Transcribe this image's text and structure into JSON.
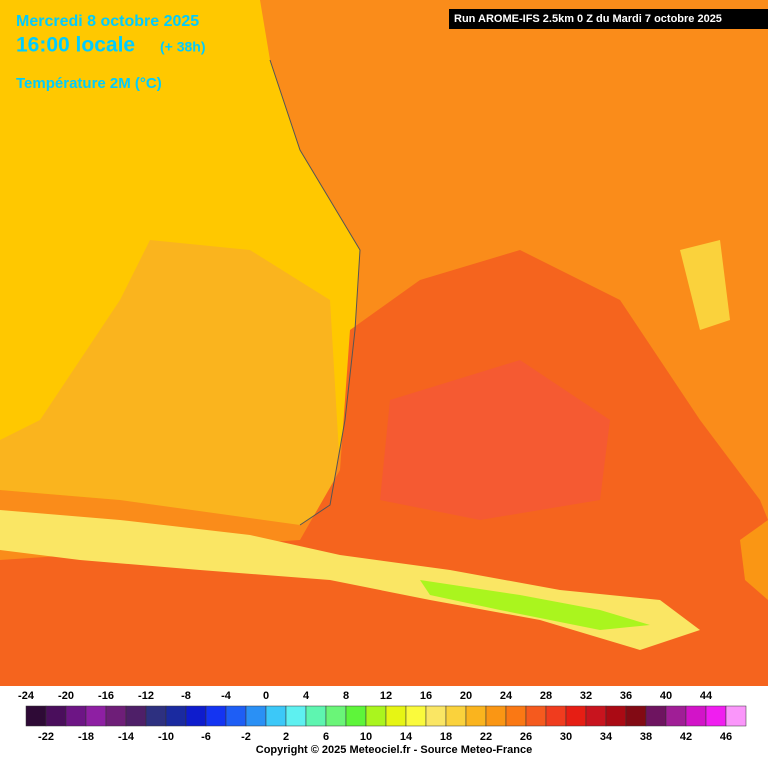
{
  "header": {
    "date": "Mercredi 8 octobre 2025",
    "time": "16:00 locale",
    "offset": "(+ 38h)",
    "variable": "Température 2M (°C)",
    "run": "Run AROME-IFS 2.5km 0 Z du Mardi 7 octobre 2025"
  },
  "legend": {
    "stops": [
      {
        "value": -24,
        "color": "#2e0a36"
      },
      {
        "value": -22,
        "color": "#4a0e5c"
      },
      {
        "value": -20,
        "color": "#6d1585"
      },
      {
        "value": -18,
        "color": "#8e1fa3"
      },
      {
        "value": -16,
        "color": "#6e1e78"
      },
      {
        "value": -14,
        "color": "#4e1f68"
      },
      {
        "value": -12,
        "color": "#2d3080"
      },
      {
        "value": -10,
        "color": "#1a2aa0"
      },
      {
        "value": -8,
        "color": "#0e1ccd"
      },
      {
        "value": -6,
        "color": "#1434f2"
      },
      {
        "value": -4,
        "color": "#1e5ef5"
      },
      {
        "value": -2,
        "color": "#2a90f5"
      },
      {
        "value": 0,
        "color": "#3cc8f8"
      },
      {
        "value": 2,
        "color": "#5ef0f0"
      },
      {
        "value": 4,
        "color": "#5ef5b0"
      },
      {
        "value": 6,
        "color": "#6af578"
      },
      {
        "value": 8,
        "color": "#5ef53a"
      },
      {
        "value": 10,
        "color": "#aaf51e"
      },
      {
        "value": 12,
        "color": "#e6f514"
      },
      {
        "value": 14,
        "color": "#fafa3c"
      },
      {
        "value": 16,
        "color": "#fae664"
      },
      {
        "value": 18,
        "color": "#fad23c"
      },
      {
        "value": 20,
        "color": "#fab41e"
      },
      {
        "value": 22,
        "color": "#fa9614"
      },
      {
        "value": 24,
        "color": "#fa7814"
      },
      {
        "value": 26,
        "color": "#f55a1e"
      },
      {
        "value": 28,
        "color": "#f03c1e"
      },
      {
        "value": 30,
        "color": "#e61e14"
      },
      {
        "value": 32,
        "color": "#c8141e"
      },
      {
        "value": 34,
        "color": "#aa0a14"
      },
      {
        "value": 36,
        "color": "#820a14"
      },
      {
        "value": 38,
        "color": "#6e1460"
      },
      {
        "value": 40,
        "color": "#a01e96"
      },
      {
        "value": 42,
        "color": "#d214c8"
      },
      {
        "value": 44,
        "color": "#f01ef0"
      },
      {
        "value": 46,
        "color": "#fa96fa"
      }
    ]
  },
  "footer": {
    "copyright": "Copyright © 2025 Meteociel.fr - Source Meteo-France"
  }
}
